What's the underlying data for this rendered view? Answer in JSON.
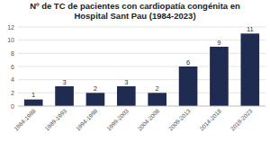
{
  "chart_data": {
    "type": "bar",
    "title": "Nº de TC de pacientes con cardiopatía congénita en Hospital Sant Pau (1984-2023)",
    "categories": [
      "1984-1988",
      "1989-1993",
      "1994-1998",
      "1999-2003",
      "2004-2008",
      "2009-2013",
      "2014-2018",
      "2019-2023"
    ],
    "values": [
      1,
      3,
      2,
      3,
      2,
      6,
      9,
      11
    ],
    "color": "#1f2b50",
    "ylim": [
      0,
      12
    ],
    "yticks": [
      0,
      2,
      4,
      6,
      8,
      10,
      12
    ],
    "grid": true,
    "data_labels": true
  }
}
